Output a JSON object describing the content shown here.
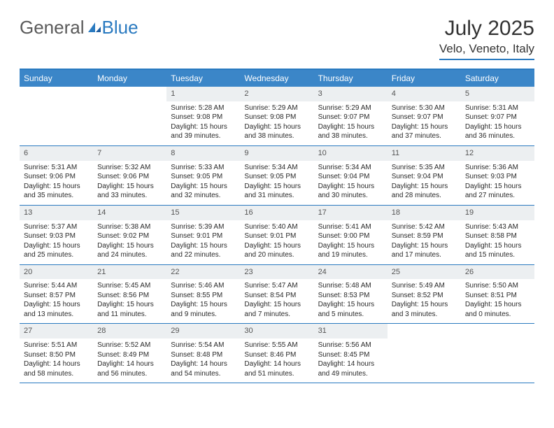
{
  "brand": {
    "part1": "General",
    "part2": "Blue"
  },
  "title": "July 2025",
  "location": "Velo, Veneto, Italy",
  "colors": {
    "header_bar": "#3b86c8",
    "accent": "#2a7ac0",
    "daynum_bg": "#eceff1",
    "text": "#2a2a2a",
    "logo_gray": "#5a5a5a"
  },
  "weekdays": [
    "Sunday",
    "Monday",
    "Tuesday",
    "Wednesday",
    "Thursday",
    "Friday",
    "Saturday"
  ],
  "weeks": [
    [
      {
        "day": "",
        "sunrise": "",
        "sunset": "",
        "daylight": "",
        "empty": true
      },
      {
        "day": "",
        "sunrise": "",
        "sunset": "",
        "daylight": "",
        "empty": true
      },
      {
        "day": "1",
        "sunrise": "Sunrise: 5:28 AM",
        "sunset": "Sunset: 9:08 PM",
        "daylight": "Daylight: 15 hours and 39 minutes."
      },
      {
        "day": "2",
        "sunrise": "Sunrise: 5:29 AM",
        "sunset": "Sunset: 9:08 PM",
        "daylight": "Daylight: 15 hours and 38 minutes."
      },
      {
        "day": "3",
        "sunrise": "Sunrise: 5:29 AM",
        "sunset": "Sunset: 9:07 PM",
        "daylight": "Daylight: 15 hours and 38 minutes."
      },
      {
        "day": "4",
        "sunrise": "Sunrise: 5:30 AM",
        "sunset": "Sunset: 9:07 PM",
        "daylight": "Daylight: 15 hours and 37 minutes."
      },
      {
        "day": "5",
        "sunrise": "Sunrise: 5:31 AM",
        "sunset": "Sunset: 9:07 PM",
        "daylight": "Daylight: 15 hours and 36 minutes."
      }
    ],
    [
      {
        "day": "6",
        "sunrise": "Sunrise: 5:31 AM",
        "sunset": "Sunset: 9:06 PM",
        "daylight": "Daylight: 15 hours and 35 minutes."
      },
      {
        "day": "7",
        "sunrise": "Sunrise: 5:32 AM",
        "sunset": "Sunset: 9:06 PM",
        "daylight": "Daylight: 15 hours and 33 minutes."
      },
      {
        "day": "8",
        "sunrise": "Sunrise: 5:33 AM",
        "sunset": "Sunset: 9:05 PM",
        "daylight": "Daylight: 15 hours and 32 minutes."
      },
      {
        "day": "9",
        "sunrise": "Sunrise: 5:34 AM",
        "sunset": "Sunset: 9:05 PM",
        "daylight": "Daylight: 15 hours and 31 minutes."
      },
      {
        "day": "10",
        "sunrise": "Sunrise: 5:34 AM",
        "sunset": "Sunset: 9:04 PM",
        "daylight": "Daylight: 15 hours and 30 minutes."
      },
      {
        "day": "11",
        "sunrise": "Sunrise: 5:35 AM",
        "sunset": "Sunset: 9:04 PM",
        "daylight": "Daylight: 15 hours and 28 minutes."
      },
      {
        "day": "12",
        "sunrise": "Sunrise: 5:36 AM",
        "sunset": "Sunset: 9:03 PM",
        "daylight": "Daylight: 15 hours and 27 minutes."
      }
    ],
    [
      {
        "day": "13",
        "sunrise": "Sunrise: 5:37 AM",
        "sunset": "Sunset: 9:03 PM",
        "daylight": "Daylight: 15 hours and 25 minutes."
      },
      {
        "day": "14",
        "sunrise": "Sunrise: 5:38 AM",
        "sunset": "Sunset: 9:02 PM",
        "daylight": "Daylight: 15 hours and 24 minutes."
      },
      {
        "day": "15",
        "sunrise": "Sunrise: 5:39 AM",
        "sunset": "Sunset: 9:01 PM",
        "daylight": "Daylight: 15 hours and 22 minutes."
      },
      {
        "day": "16",
        "sunrise": "Sunrise: 5:40 AM",
        "sunset": "Sunset: 9:01 PM",
        "daylight": "Daylight: 15 hours and 20 minutes."
      },
      {
        "day": "17",
        "sunrise": "Sunrise: 5:41 AM",
        "sunset": "Sunset: 9:00 PM",
        "daylight": "Daylight: 15 hours and 19 minutes."
      },
      {
        "day": "18",
        "sunrise": "Sunrise: 5:42 AM",
        "sunset": "Sunset: 8:59 PM",
        "daylight": "Daylight: 15 hours and 17 minutes."
      },
      {
        "day": "19",
        "sunrise": "Sunrise: 5:43 AM",
        "sunset": "Sunset: 8:58 PM",
        "daylight": "Daylight: 15 hours and 15 minutes."
      }
    ],
    [
      {
        "day": "20",
        "sunrise": "Sunrise: 5:44 AM",
        "sunset": "Sunset: 8:57 PM",
        "daylight": "Daylight: 15 hours and 13 minutes."
      },
      {
        "day": "21",
        "sunrise": "Sunrise: 5:45 AM",
        "sunset": "Sunset: 8:56 PM",
        "daylight": "Daylight: 15 hours and 11 minutes."
      },
      {
        "day": "22",
        "sunrise": "Sunrise: 5:46 AM",
        "sunset": "Sunset: 8:55 PM",
        "daylight": "Daylight: 15 hours and 9 minutes."
      },
      {
        "day": "23",
        "sunrise": "Sunrise: 5:47 AM",
        "sunset": "Sunset: 8:54 PM",
        "daylight": "Daylight: 15 hours and 7 minutes."
      },
      {
        "day": "24",
        "sunrise": "Sunrise: 5:48 AM",
        "sunset": "Sunset: 8:53 PM",
        "daylight": "Daylight: 15 hours and 5 minutes."
      },
      {
        "day": "25",
        "sunrise": "Sunrise: 5:49 AM",
        "sunset": "Sunset: 8:52 PM",
        "daylight": "Daylight: 15 hours and 3 minutes."
      },
      {
        "day": "26",
        "sunrise": "Sunrise: 5:50 AM",
        "sunset": "Sunset: 8:51 PM",
        "daylight": "Daylight: 15 hours and 0 minutes."
      }
    ],
    [
      {
        "day": "27",
        "sunrise": "Sunrise: 5:51 AM",
        "sunset": "Sunset: 8:50 PM",
        "daylight": "Daylight: 14 hours and 58 minutes."
      },
      {
        "day": "28",
        "sunrise": "Sunrise: 5:52 AM",
        "sunset": "Sunset: 8:49 PM",
        "daylight": "Daylight: 14 hours and 56 minutes."
      },
      {
        "day": "29",
        "sunrise": "Sunrise: 5:54 AM",
        "sunset": "Sunset: 8:48 PM",
        "daylight": "Daylight: 14 hours and 54 minutes."
      },
      {
        "day": "30",
        "sunrise": "Sunrise: 5:55 AM",
        "sunset": "Sunset: 8:46 PM",
        "daylight": "Daylight: 14 hours and 51 minutes."
      },
      {
        "day": "31",
        "sunrise": "Sunrise: 5:56 AM",
        "sunset": "Sunset: 8:45 PM",
        "daylight": "Daylight: 14 hours and 49 minutes."
      },
      {
        "day": "",
        "sunrise": "",
        "sunset": "",
        "daylight": "",
        "empty": true
      },
      {
        "day": "",
        "sunrise": "",
        "sunset": "",
        "daylight": "",
        "empty": true
      }
    ]
  ]
}
